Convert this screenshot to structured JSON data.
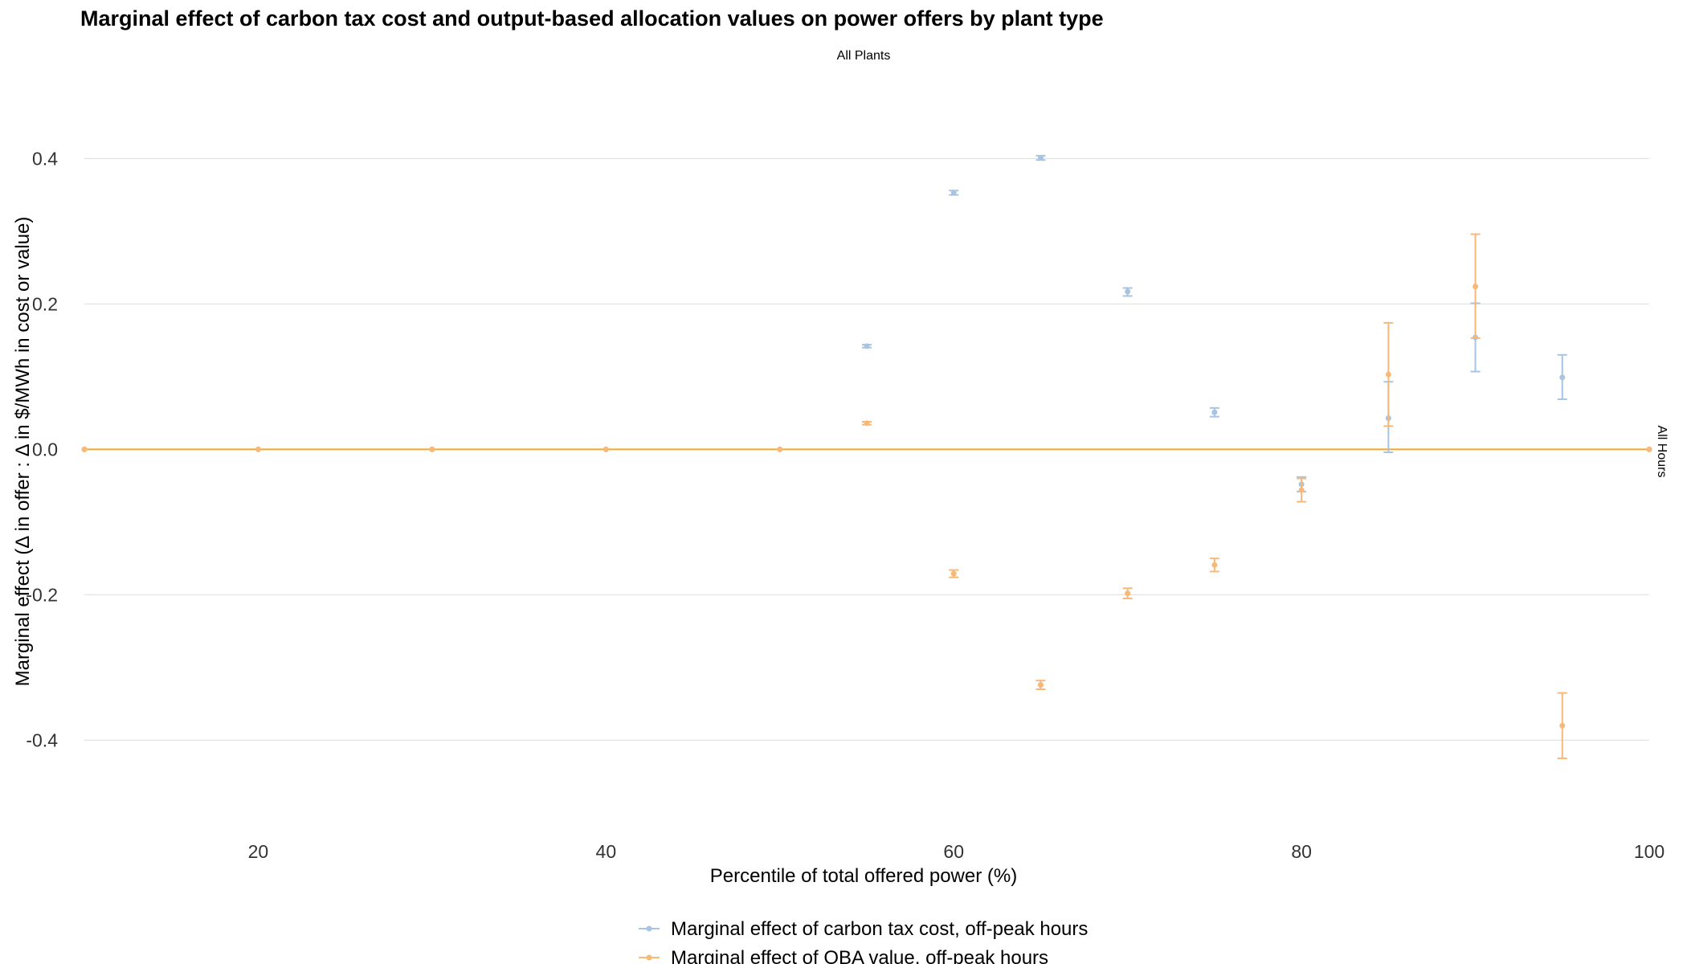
{
  "chart_data": {
    "type": "scatter",
    "title": "Marginal effect of carbon tax cost and output-based allocation values on power offers by plant type",
    "subtitle": "All Plants",
    "facet_label": "All Hours",
    "xlabel": "Percentile of total offered power (%)",
    "ylabel": "Marginal effect (Δ in offer : Δ in $/MWh in cost or value)",
    "xlim": [
      10,
      100
    ],
    "ylim": [
      -0.52,
      0.48
    ],
    "x_ticks": [
      20,
      40,
      60,
      80,
      100
    ],
    "y_ticks": [
      -0.4,
      -0.2,
      0.0,
      0.2,
      0.4
    ],
    "x_tick_labels": [
      "20",
      "40",
      "60",
      "80",
      "100"
    ],
    "y_tick_labels": [
      "-0.4",
      "-0.2",
      "0.0",
      "0.2",
      "0.4"
    ],
    "grid": "horizontal",
    "legend_position": "bottom",
    "series": [
      {
        "name": "Marginal effect of carbon tax cost, off-peak hours",
        "color": "#a8c4e0",
        "x": [
          10,
          20,
          30,
          40,
          50,
          55,
          60,
          65,
          70,
          75,
          80,
          85,
          90,
          95,
          100
        ],
        "y": [
          0,
          0,
          0,
          0,
          0,
          0.142,
          0.353,
          0.401,
          0.217,
          0.051,
          -0.048,
          0.043,
          0.154,
          0.099,
          0
        ],
        "ymin": [
          0,
          0,
          0,
          0,
          0,
          0.14,
          0.35,
          0.398,
          0.211,
          0.045,
          -0.058,
          -0.004,
          0.107,
          0.069,
          0
        ],
        "ymax": [
          0,
          0,
          0,
          0,
          0,
          0.144,
          0.356,
          0.404,
          0.222,
          0.057,
          -0.038,
          0.093,
          0.201,
          0.13,
          0
        ]
      },
      {
        "name": "Marginal effect of OBA value, off-peak hours",
        "color": "#f8b878",
        "x": [
          10,
          20,
          30,
          40,
          50,
          55,
          60,
          65,
          70,
          75,
          80,
          85,
          90,
          95,
          100
        ],
        "y": [
          0,
          0,
          0,
          0,
          0,
          0.036,
          -0.171,
          -0.324,
          -0.198,
          -0.159,
          -0.056,
          0.103,
          0.224,
          -0.38,
          0
        ],
        "ymin": [
          0,
          0,
          0,
          0,
          0,
          0.034,
          -0.176,
          -0.33,
          -0.205,
          -0.168,
          -0.072,
          0.032,
          0.153,
          -0.425,
          0
        ],
        "ymax": [
          0,
          0,
          0,
          0,
          0,
          0.038,
          -0.166,
          -0.318,
          -0.191,
          -0.15,
          -0.04,
          0.174,
          0.296,
          -0.335,
          0
        ]
      }
    ],
    "zero_line_color": "#f5a623"
  }
}
